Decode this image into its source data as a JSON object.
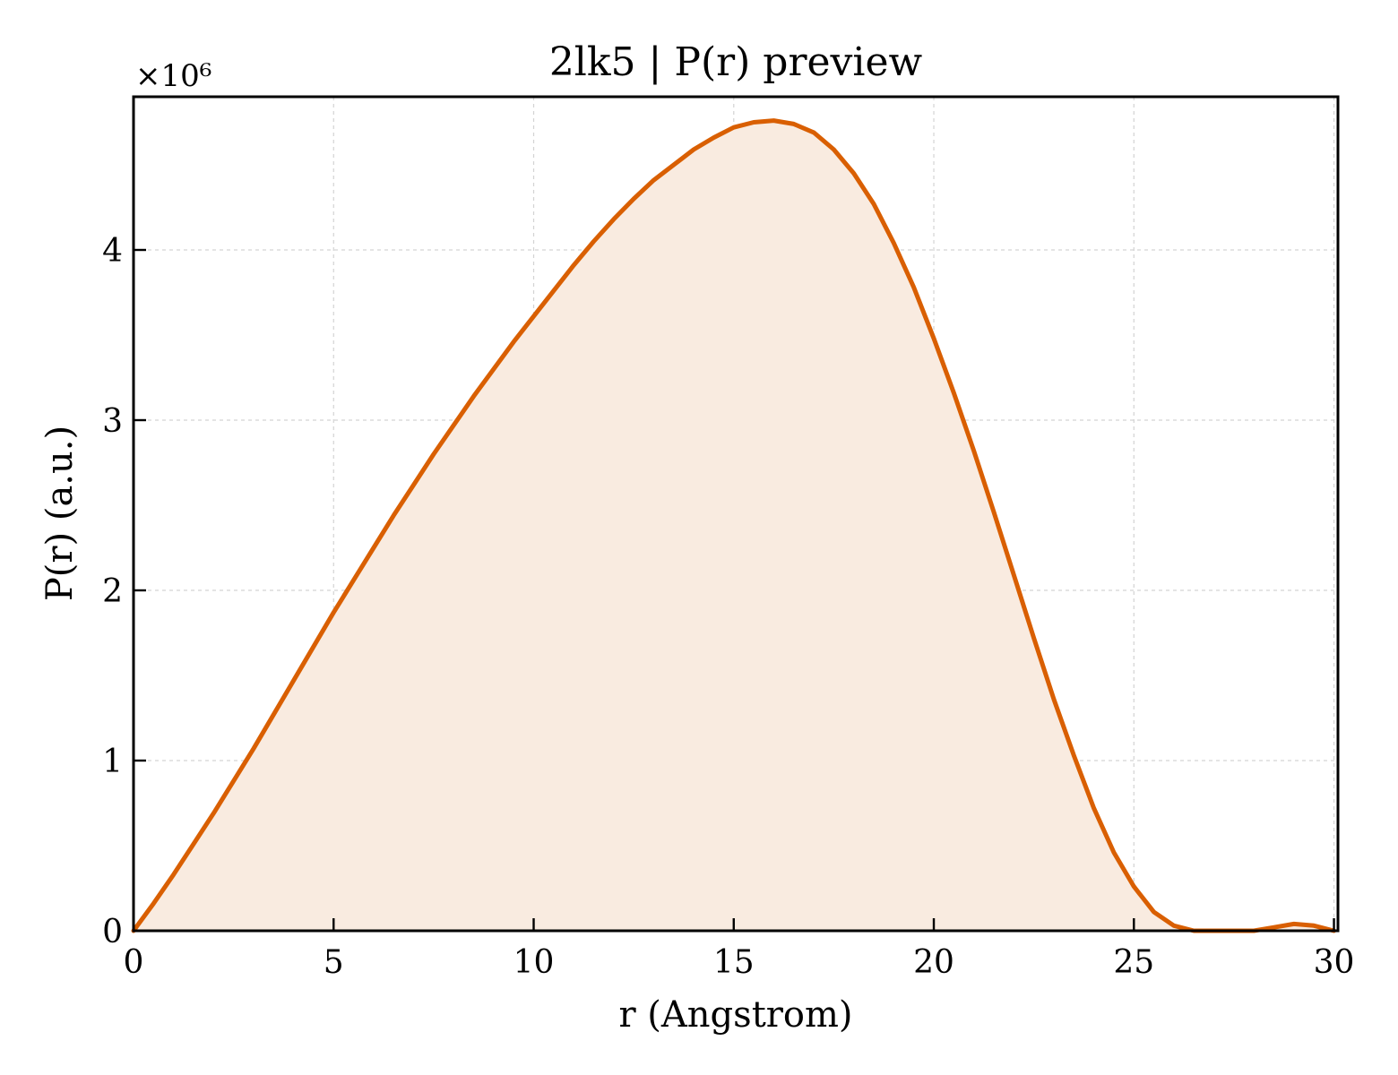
{
  "chart_data": {
    "type": "area",
    "title": "2lk5 | P(r) preview",
    "xlabel": "r (Angstrom)",
    "ylabel": "P(r) (a.u.)",
    "y_multiplier_label": "×10⁶",
    "xlim": [
      0,
      30.1
    ],
    "ylim": [
      0,
      4.9
    ],
    "x_ticks": [
      0,
      5,
      10,
      15,
      20,
      25,
      30
    ],
    "y_ticks": [
      0,
      1,
      2,
      3,
      4
    ],
    "grid": true,
    "line_color": "#d95f02",
    "fill_color": "#f9ebe0",
    "series": [
      {
        "x": [
          0,
          0.5,
          1,
          1.5,
          2,
          2.5,
          3,
          3.5,
          4,
          4.5,
          5,
          5.5,
          6,
          6.5,
          7,
          7.5,
          8,
          8.5,
          9,
          9.5,
          10,
          10.5,
          11,
          11.5,
          12,
          12.5,
          13,
          13.5,
          14,
          14.5,
          15,
          15.5,
          16,
          16.5,
          17,
          17.5,
          18,
          18.5,
          19,
          19.5,
          20,
          20.5,
          21,
          21.5,
          22,
          22.5,
          23,
          23.5,
          24,
          24.5,
          25,
          25.5,
          26,
          26.5,
          27,
          27.5,
          28,
          28.5,
          29,
          29.5,
          30
        ],
        "y": [
          0,
          0.16,
          0.33,
          0.51,
          0.69,
          0.88,
          1.07,
          1.27,
          1.47,
          1.67,
          1.87,
          2.06,
          2.25,
          2.44,
          2.62,
          2.8,
          2.97,
          3.14,
          3.3,
          3.46,
          3.61,
          3.76,
          3.91,
          4.05,
          4.18,
          4.3,
          4.41,
          4.5,
          4.59,
          4.66,
          4.72,
          4.75,
          4.76,
          4.74,
          4.69,
          4.59,
          4.45,
          4.27,
          4.04,
          3.78,
          3.48,
          3.16,
          2.82,
          2.46,
          2.09,
          1.72,
          1.36,
          1.03,
          0.72,
          0.46,
          0.26,
          0.11,
          0.03,
          0,
          0,
          0,
          0,
          0.02,
          0.04,
          0.03,
          0
        ]
      }
    ]
  }
}
